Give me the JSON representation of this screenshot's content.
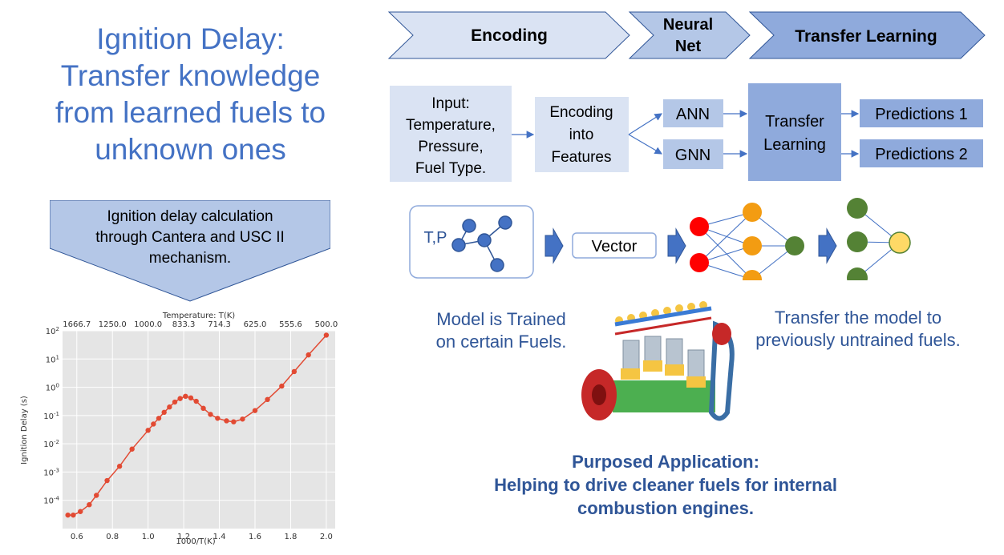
{
  "title_lines": [
    "Ignition Delay:",
    "Transfer knowledge",
    "from learned fuels to",
    "unknown ones"
  ],
  "callout": {
    "lines": [
      "Ignition delay calculation",
      "through Cantera and USC II",
      "mechanism."
    ]
  },
  "stages": {
    "encoding": "Encoding",
    "neural_net": [
      "Neural",
      "Net"
    ],
    "transfer": "Transfer Learning"
  },
  "flow": {
    "input": [
      "Input:",
      "Temperature,",
      "Pressure,",
      "Fuel Type."
    ],
    "encoding": [
      "Encoding",
      "into",
      "Features"
    ],
    "ann": "ANN",
    "gnn": "GNN",
    "transfer": [
      "Transfer",
      "Learning"
    ],
    "pred1": "Predictions 1",
    "pred2": "Predictions 2"
  },
  "graph_label": "T,P",
  "vector_label": "Vector",
  "model_trained": [
    "Model is Trained",
    "on certain Fuels."
  ],
  "transfer_model": [
    "Transfer the model to",
    "previously untrained fuels."
  ],
  "application": [
    "Purposed Application:",
    "Helping to drive cleaner fuels for internal",
    "combustion engines."
  ],
  "colors": {
    "title": "#4472c4",
    "body_text": "#2f5597",
    "box_light": "#dae3f3",
    "box_mid": "#b4c7e7",
    "box_dark": "#8faadc",
    "node_red": "#ff0000",
    "node_orange": "#f39c12",
    "node_green": "#548235",
    "node_yellow": "#ffd966",
    "series": "#e24a33"
  },
  "chart_data": {
    "type": "line",
    "xlabel": "1000/T(K)",
    "ylabel": "Ignition Delay (s)",
    "top_axis_label": "Temperature: T(K)",
    "yscale": "log",
    "xlim": [
      0.52,
      2.05
    ],
    "ylim_exp": [
      -5,
      2
    ],
    "x_ticks": [
      "0.6",
      "0.8",
      "1.0",
      "1.2",
      "1.4",
      "1.6",
      "1.8",
      "2.0"
    ],
    "x_tick_values": [
      0.6,
      0.8,
      1.0,
      1.2,
      1.4,
      1.6,
      1.8,
      2.0
    ],
    "top_ticks": [
      "1666.7",
      "1250.0",
      "1000.0",
      "833.3",
      "714.3",
      "625.0",
      "555.6",
      "500.0"
    ],
    "y_ticks": [
      {
        "base": "10",
        "exp": "2"
      },
      {
        "base": "10",
        "exp": "1"
      },
      {
        "base": "10",
        "exp": "0"
      },
      {
        "base": "10",
        "exp": "-1"
      },
      {
        "base": "10",
        "exp": "-2"
      },
      {
        "base": "10",
        "exp": "-3"
      },
      {
        "base": "10",
        "exp": "-4"
      }
    ],
    "y_tick_exps": [
      2,
      1,
      0,
      -1,
      -2,
      -3,
      -4
    ],
    "grid": true,
    "x": [
      0.55,
      0.58,
      0.62,
      0.67,
      0.71,
      0.77,
      0.84,
      0.91,
      1.0,
      1.03,
      1.06,
      1.09,
      1.12,
      1.15,
      1.18,
      1.21,
      1.24,
      1.27,
      1.31,
      1.35,
      1.39,
      1.44,
      1.48,
      1.53,
      1.6,
      1.67,
      1.75,
      1.82,
      1.9,
      2.0
    ],
    "y": [
      3e-05,
      3e-05,
      4e-05,
      7e-05,
      0.00015,
      0.0005,
      0.0016,
      0.0065,
      0.03,
      0.05,
      0.08,
      0.13,
      0.2,
      0.3,
      0.4,
      0.48,
      0.42,
      0.32,
      0.18,
      0.11,
      0.08,
      0.065,
      0.06,
      0.075,
      0.15,
      0.37,
      1.1,
      3.6,
      14,
      70
    ]
  }
}
